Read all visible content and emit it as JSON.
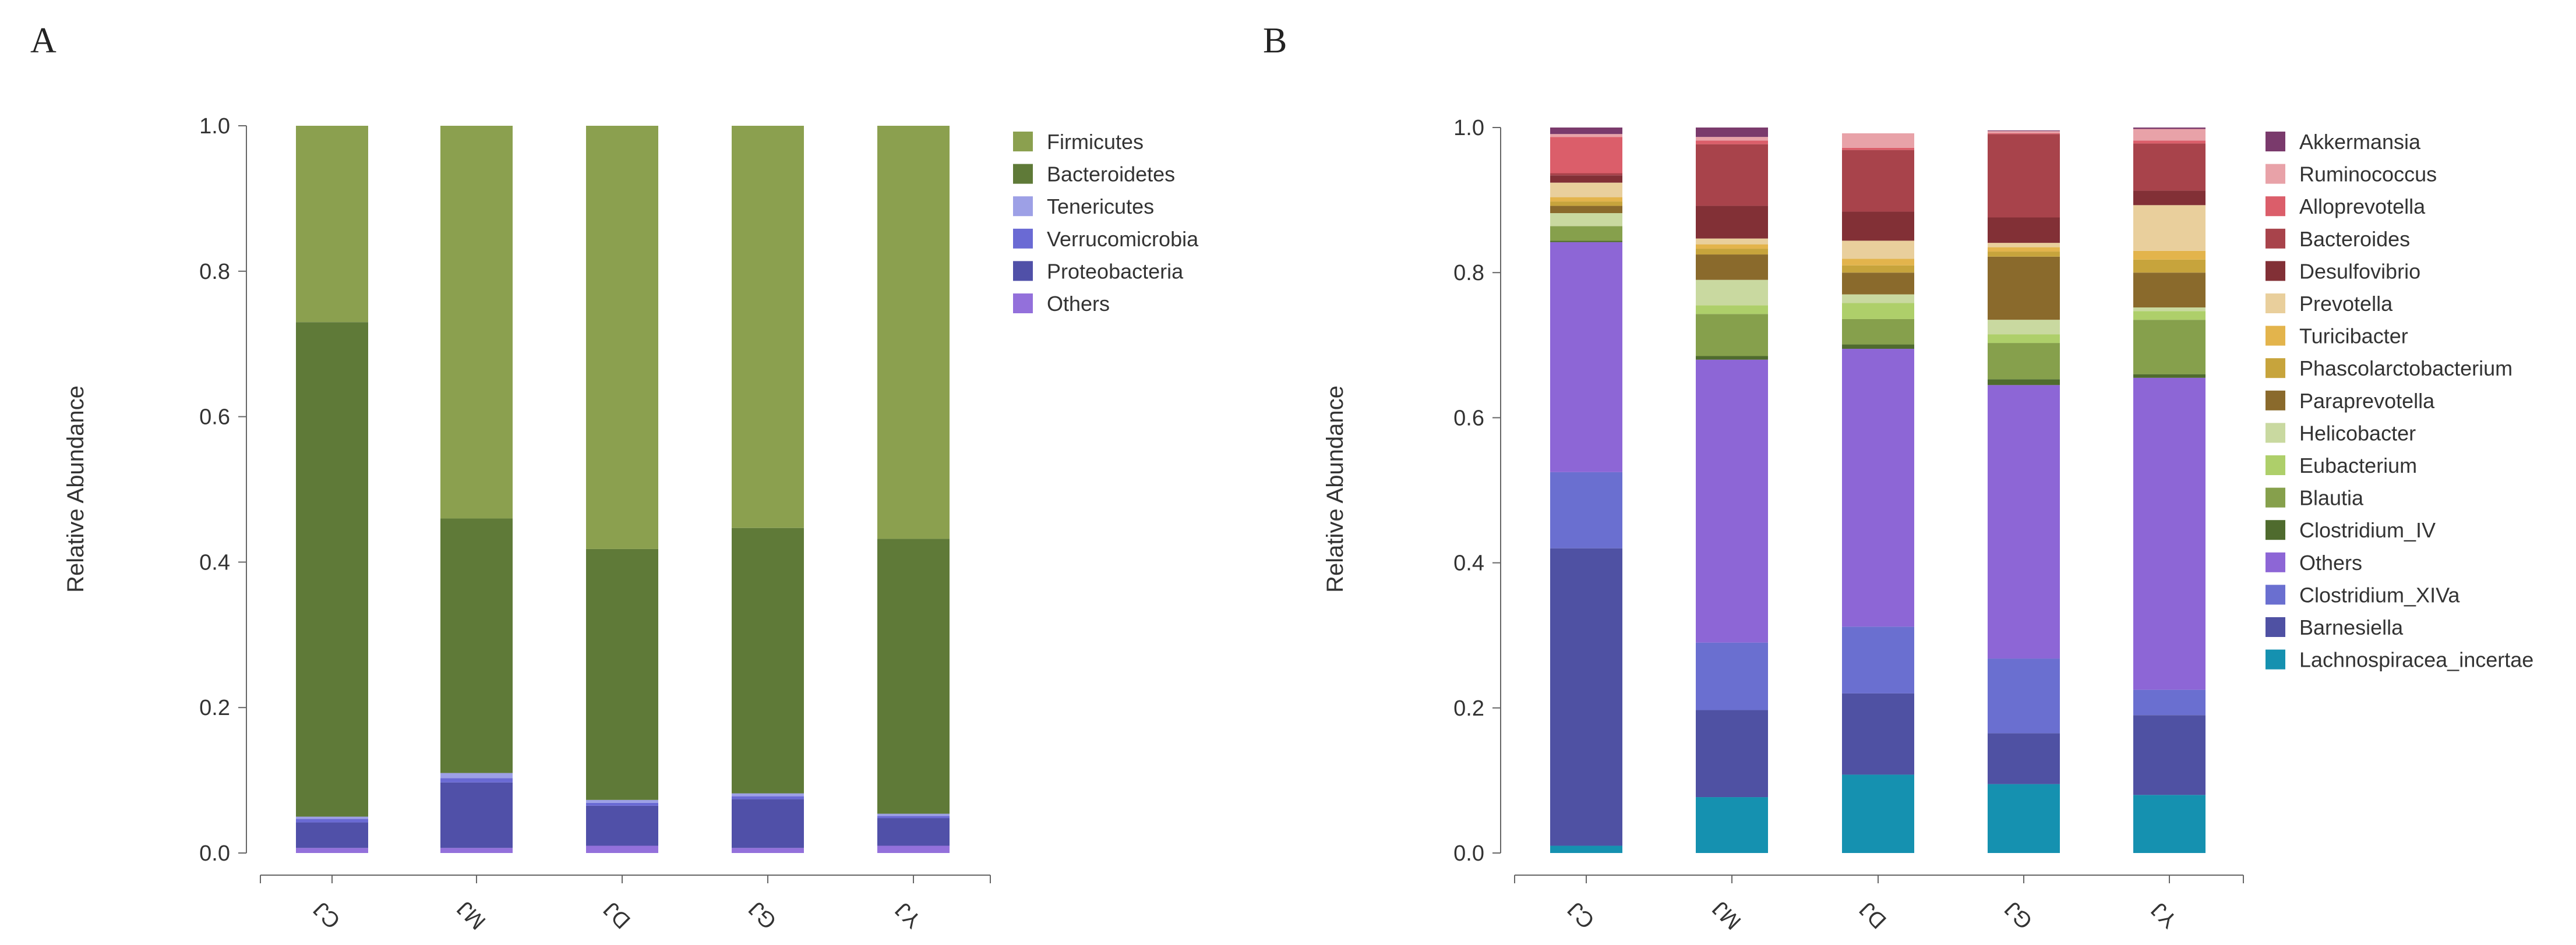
{
  "chart_data": [
    {
      "type": "bar",
      "stacked": true,
      "panel_label": "A",
      "ylabel": "Relative Abundance",
      "ylim": [
        0,
        1
      ],
      "yticks": [
        "0.0",
        "0.2",
        "0.4",
        "0.6",
        "0.8",
        "1.0"
      ],
      "categories": [
        "CJ",
        "MJ",
        "DJ",
        "GJ",
        "YJ"
      ],
      "series": [
        {
          "name": "Others",
          "color": "#9370DB",
          "values": [
            0.007,
            0.007,
            0.01,
            0.007,
            0.01
          ]
        },
        {
          "name": "Proteobacteria",
          "color": "#5050A8",
          "values": [
            0.035,
            0.09,
            0.055,
            0.067,
            0.038
          ]
        },
        {
          "name": "Verrucomicrobia",
          "color": "#6A6AD4",
          "values": [
            0.005,
            0.006,
            0.004,
            0.004,
            0.003
          ]
        },
        {
          "name": "Tenericutes",
          "color": "#9DA0E6",
          "values": [
            0.003,
            0.007,
            0.004,
            0.004,
            0.003
          ]
        },
        {
          "name": "Bacteroidetes",
          "color": "#5F7A38",
          "values": [
            0.68,
            0.35,
            0.345,
            0.365,
            0.378
          ]
        },
        {
          "name": "Firmicutes",
          "color": "#8BA04F",
          "values": [
            0.27,
            0.54,
            0.582,
            0.553,
            0.568
          ]
        }
      ],
      "legend": [
        "Firmicutes",
        "Bacteroidetes",
        "Tenericutes",
        "Verrucomicrobia",
        "Proteobacteria",
        "Others"
      ]
    },
    {
      "type": "bar",
      "stacked": true,
      "panel_label": "B",
      "ylabel": "Relative Abundance",
      "ylim": [
        0,
        1
      ],
      "yticks": [
        "0.0",
        "0.2",
        "0.4",
        "0.6",
        "0.8",
        "1.0"
      ],
      "categories": [
        "CJ",
        "MJ",
        "DJ",
        "GJ",
        "YJ"
      ],
      "series": [
        {
          "name": "Lachnospiracea_incertae",
          "color": "#1591B0",
          "values": [
            0.01,
            0.077,
            0.108,
            0.095,
            0.08
          ]
        },
        {
          "name": "Barnesiella",
          "color": "#4F51A3",
          "values": [
            0.41,
            0.12,
            0.112,
            0.07,
            0.11
          ]
        },
        {
          "name": "Clostridium_XIVa",
          "color": "#6A6FD0",
          "values": [
            0.105,
            0.093,
            0.092,
            0.103,
            0.035
          ]
        },
        {
          "name": "Others",
          "color": "#8D66D6",
          "values": [
            0.317,
            0.39,
            0.383,
            0.377,
            0.43
          ]
        },
        {
          "name": "Clostridium_IV",
          "color": "#4F6B2E",
          "values": [
            0.002,
            0.005,
            0.006,
            0.008,
            0.005
          ]
        },
        {
          "name": "Blautia",
          "color": "#86A04C",
          "values": [
            0.02,
            0.058,
            0.035,
            0.05,
            0.075
          ]
        },
        {
          "name": "Eubacterium",
          "color": "#AECF6A",
          "values": [
            0.0,
            0.012,
            0.022,
            0.012,
            0.012
          ]
        },
        {
          "name": "Helicobacter",
          "color": "#C9D9A0",
          "values": [
            0.018,
            0.035,
            0.012,
            0.02,
            0.005
          ]
        },
        {
          "name": "Paraprevotella",
          "color": "#8A6A2C",
          "values": [
            0.01,
            0.035,
            0.03,
            0.087,
            0.048
          ]
        },
        {
          "name": "Phascolarctobacterium",
          "color": "#C7A43C",
          "values": [
            0.006,
            0.008,
            0.01,
            0.007,
            0.018
          ]
        },
        {
          "name": "Turicibacter",
          "color": "#E3B44C",
          "values": [
            0.006,
            0.006,
            0.009,
            0.006,
            0.012
          ]
        },
        {
          "name": "Prevotella",
          "color": "#E9CF9C",
          "values": [
            0.02,
            0.008,
            0.025,
            0.006,
            0.063
          ]
        },
        {
          "name": "Desulfovibrio",
          "color": "#823036",
          "values": [
            0.01,
            0.045,
            0.04,
            0.035,
            0.02
          ]
        },
        {
          "name": "Bacteroides",
          "color": "#A8434B",
          "values": [
            0.003,
            0.085,
            0.085,
            0.115,
            0.065
          ]
        },
        {
          "name": "Alloprevotella",
          "color": "#DB5E6A",
          "values": [
            0.05,
            0.005,
            0.003,
            0.001,
            0.004
          ]
        },
        {
          "name": "Ruminococcus",
          "color": "#E8A2A8",
          "values": [
            0.004,
            0.005,
            0.02,
            0.003,
            0.016
          ]
        },
        {
          "name": "Akkermansia",
          "color": "#7A3A6C",
          "values": [
            0.009,
            0.013,
            0.0,
            0.001,
            0.002
          ]
        }
      ],
      "legend": [
        "Akkermansia",
        "Ruminococcus",
        "Alloprevotella",
        "Bacteroides",
        "Desulfovibrio",
        "Prevotella",
        "Turicibacter",
        "Phascolarctobacterium",
        "Paraprevotella",
        "Helicobacter",
        "Eubacterium",
        "Blautia",
        "Clostridium_IV",
        "Others",
        "Clostridium_XIVa",
        "Barnesiella",
        "Lachnospiracea_incertae"
      ]
    }
  ]
}
